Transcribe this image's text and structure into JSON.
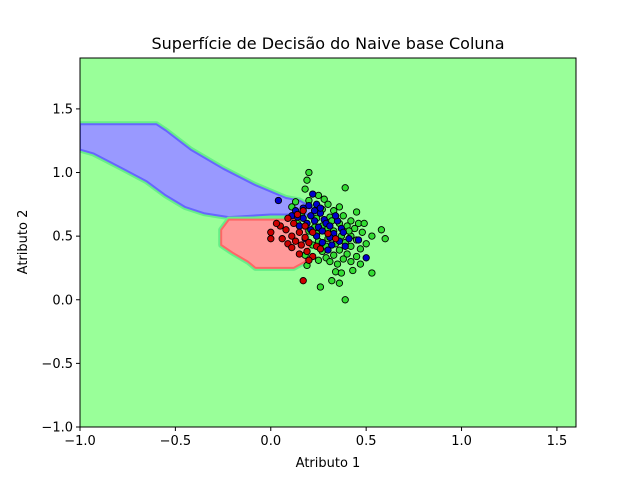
{
  "chart_data": {
    "type": "scatter",
    "title": "Superfície de Decisão do Naive base Coluna",
    "xlabel": "Atributo 1",
    "ylabel": "Atributo 2",
    "xlim": [
      -1.0,
      1.6
    ],
    "ylim": [
      -1.0,
      1.9
    ],
    "xticks": [
      "−1.0",
      "−0.5",
      "0.0",
      "0.5",
      "1.0",
      "1.5"
    ],
    "xtick_values": [
      -1.0,
      -0.5,
      0.0,
      0.5,
      1.0,
      1.5
    ],
    "yticks": [
      "−1.0",
      "−0.5",
      "0.0",
      "0.5",
      "1.0",
      "1.5"
    ],
    "ytick_values": [
      -1.0,
      -0.5,
      0.0,
      0.5,
      1.0,
      1.5
    ],
    "grid": false,
    "colors": {
      "background_region": "#99ff99",
      "blue_region": "#9999ff",
      "red_region": "#ff9999",
      "blue_points": "#0000cc",
      "red_points": "#cc0000",
      "green_points": "#33dd33",
      "marker_edge": "#000000"
    },
    "regions": [
      {
        "color": "blue",
        "polygon": [
          [
            -1.0,
            1.38
          ],
          [
            -0.6,
            1.38
          ],
          [
            -0.55,
            1.33
          ],
          [
            -0.42,
            1.18
          ],
          [
            -0.25,
            1.03
          ],
          [
            -0.08,
            0.9
          ],
          [
            0.08,
            0.8
          ],
          [
            0.15,
            0.78
          ],
          [
            0.22,
            0.72
          ],
          [
            0.22,
            0.67
          ],
          [
            0.0,
            0.67
          ],
          [
            -0.22,
            0.65
          ],
          [
            -0.35,
            0.68
          ],
          [
            -0.45,
            0.73
          ],
          [
            -0.55,
            0.82
          ],
          [
            -0.65,
            0.93
          ],
          [
            -0.8,
            1.05
          ],
          [
            -0.93,
            1.15
          ],
          [
            -1.0,
            1.18
          ]
        ]
      },
      {
        "color": "red",
        "polygon": [
          [
            -0.22,
            0.63
          ],
          [
            0.12,
            0.63
          ],
          [
            0.18,
            0.55
          ],
          [
            0.2,
            0.42
          ],
          [
            0.18,
            0.3
          ],
          [
            0.12,
            0.25
          ],
          [
            -0.08,
            0.25
          ],
          [
            -0.12,
            0.3
          ],
          [
            -0.2,
            0.37
          ],
          [
            -0.26,
            0.43
          ],
          [
            -0.26,
            0.55
          ]
        ]
      }
    ],
    "series": [
      {
        "color": "green",
        "points": [
          [
            0.2,
            1.0
          ],
          [
            0.19,
            0.94
          ],
          [
            0.39,
            0.88
          ],
          [
            0.18,
            0.87
          ],
          [
            0.25,
            0.82
          ],
          [
            0.28,
            0.79
          ],
          [
            0.2,
            0.78
          ],
          [
            0.3,
            0.75
          ],
          [
            0.36,
            0.73
          ],
          [
            0.13,
            0.77
          ],
          [
            0.27,
            0.71
          ],
          [
            0.33,
            0.7
          ],
          [
            0.45,
            0.69
          ],
          [
            0.38,
            0.66
          ],
          [
            0.31,
            0.65
          ],
          [
            0.24,
            0.64
          ],
          [
            0.42,
            0.62
          ],
          [
            0.46,
            0.6
          ],
          [
            0.49,
            0.6
          ],
          [
            0.36,
            0.6
          ],
          [
            0.27,
            0.58
          ],
          [
            0.4,
            0.58
          ],
          [
            0.3,
            0.56
          ],
          [
            0.44,
            0.56
          ],
          [
            0.58,
            0.55
          ],
          [
            0.2,
            0.54
          ],
          [
            0.33,
            0.54
          ],
          [
            0.48,
            0.53
          ],
          [
            0.24,
            0.52
          ],
          [
            0.37,
            0.5
          ],
          [
            0.42,
            0.5
          ],
          [
            0.53,
            0.5
          ],
          [
            0.6,
            0.48
          ],
          [
            0.3,
            0.48
          ],
          [
            0.45,
            0.47
          ],
          [
            0.25,
            0.46
          ],
          [
            0.39,
            0.45
          ],
          [
            0.5,
            0.44
          ],
          [
            0.34,
            0.44
          ],
          [
            0.22,
            0.43
          ],
          [
            0.29,
            0.42
          ],
          [
            0.42,
            0.42
          ],
          [
            0.47,
            0.4
          ],
          [
            0.36,
            0.39
          ],
          [
            0.27,
            0.38
          ],
          [
            0.4,
            0.36
          ],
          [
            0.33,
            0.35
          ],
          [
            0.45,
            0.34
          ],
          [
            0.29,
            0.33
          ],
          [
            0.38,
            0.32
          ],
          [
            0.25,
            0.31
          ],
          [
            0.31,
            0.3
          ],
          [
            0.42,
            0.3
          ],
          [
            0.35,
            0.28
          ],
          [
            0.47,
            0.28
          ],
          [
            0.19,
            0.27
          ],
          [
            0.34,
            0.22
          ],
          [
            0.53,
            0.21
          ],
          [
            0.43,
            0.23
          ],
          [
            0.37,
            0.21
          ],
          [
            0.32,
            0.15
          ],
          [
            0.36,
            0.13
          ],
          [
            0.26,
            0.1
          ],
          [
            0.39,
            0.0
          ],
          [
            0.18,
            0.35
          ],
          [
            0.23,
            0.57
          ],
          [
            0.11,
            0.73
          ],
          [
            0.16,
            0.67
          ],
          [
            0.14,
            0.6
          ],
          [
            0.32,
            0.62
          ],
          [
            0.41,
            0.54
          ]
        ]
      },
      {
        "color": "blue",
        "points": [
          [
            0.04,
            0.78
          ],
          [
            0.22,
            0.83
          ],
          [
            0.24,
            0.75
          ],
          [
            0.2,
            0.74
          ],
          [
            0.17,
            0.72
          ],
          [
            0.13,
            0.7
          ],
          [
            0.23,
            0.7
          ],
          [
            0.26,
            0.68
          ],
          [
            0.21,
            0.66
          ],
          [
            0.11,
            0.66
          ],
          [
            0.17,
            0.64
          ],
          [
            0.28,
            0.63
          ],
          [
            0.23,
            0.62
          ],
          [
            0.35,
            0.62
          ],
          [
            0.19,
            0.6
          ],
          [
            0.29,
            0.6
          ],
          [
            0.15,
            0.58
          ],
          [
            0.25,
            0.57
          ],
          [
            0.31,
            0.58
          ],
          [
            0.37,
            0.56
          ],
          [
            0.21,
            0.55
          ],
          [
            0.27,
            0.54
          ],
          [
            0.33,
            0.52
          ],
          [
            0.38,
            0.53
          ],
          [
            0.24,
            0.5
          ],
          [
            0.31,
            0.49
          ],
          [
            0.18,
            0.48
          ],
          [
            0.41,
            0.48
          ],
          [
            0.46,
            0.47
          ],
          [
            0.36,
            0.46
          ],
          [
            0.27,
            0.45
          ],
          [
            0.32,
            0.43
          ],
          [
            0.39,
            0.42
          ],
          [
            0.3,
            0.39
          ],
          [
            0.5,
            0.33
          ],
          [
            0.14,
            0.65
          ],
          [
            0.26,
            0.72
          ],
          [
            0.34,
            0.66
          ]
        ]
      },
      {
        "color": "red",
        "points": [
          [
            0.17,
            0.7
          ],
          [
            0.14,
            0.67
          ],
          [
            0.09,
            0.64
          ],
          [
            0.12,
            0.6
          ],
          [
            0.05,
            0.58
          ],
          [
            0.18,
            0.58
          ],
          [
            0.08,
            0.55
          ],
          [
            0.15,
            0.53
          ],
          [
            0.0,
            0.53
          ],
          [
            0.22,
            0.53
          ],
          [
            0.11,
            0.5
          ],
          [
            0.18,
            0.49
          ],
          [
            0.0,
            0.48
          ],
          [
            0.06,
            0.48
          ],
          [
            0.13,
            0.46
          ],
          [
            0.2,
            0.45
          ],
          [
            0.09,
            0.44
          ],
          [
            0.16,
            0.43
          ],
          [
            0.24,
            0.42
          ],
          [
            0.11,
            0.41
          ],
          [
            0.19,
            0.38
          ],
          [
            0.26,
            0.4
          ],
          [
            0.15,
            0.36
          ],
          [
            0.22,
            0.34
          ],
          [
            0.2,
            0.31
          ],
          [
            0.3,
            0.52
          ],
          [
            0.34,
            0.48
          ],
          [
            0.17,
            0.15
          ],
          [
            0.03,
            0.6
          ]
        ]
      }
    ]
  }
}
